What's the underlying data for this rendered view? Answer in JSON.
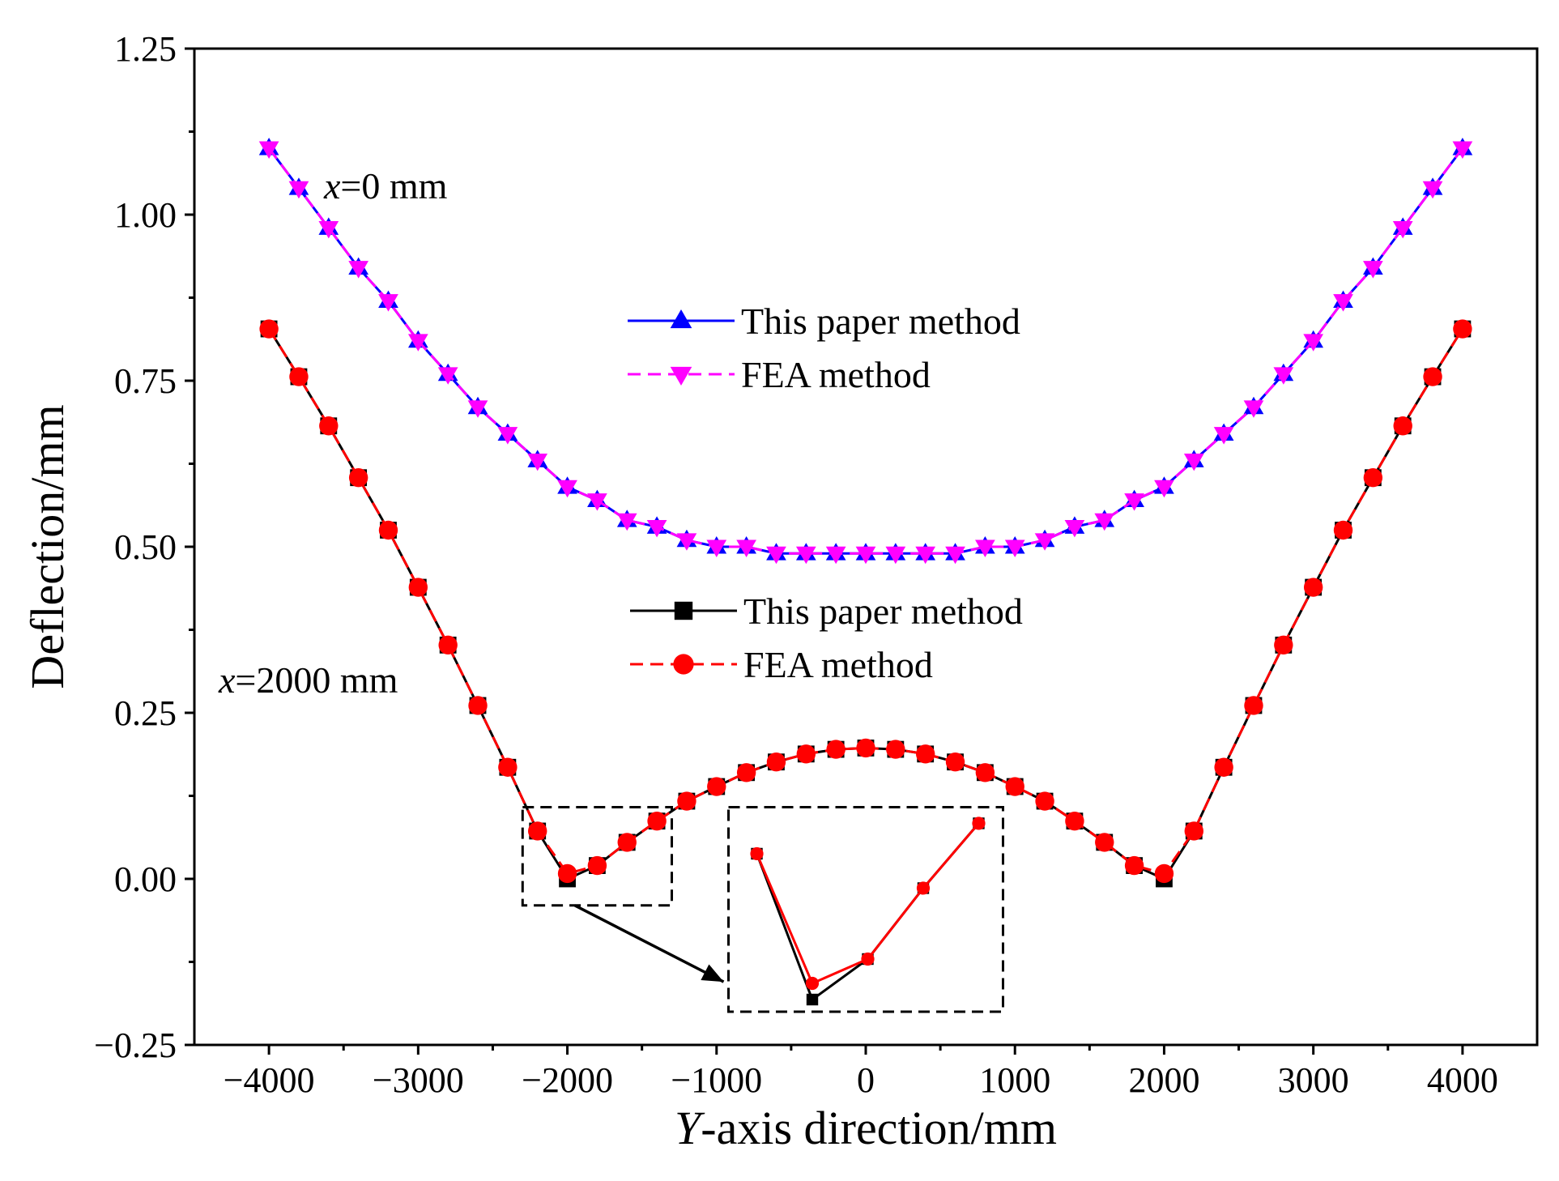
{
  "chart_data": {
    "type": "line",
    "title": "",
    "xlabel_italic": "Y",
    "xlabel_rest": "-axis direction/mm",
    "ylabel": "Deflection/mm",
    "xlim": [
      -4500,
      4500
    ],
    "ylim": [
      -0.25,
      1.25
    ],
    "x_ticks": [
      -4000,
      -3000,
      -2000,
      -1000,
      0,
      1000,
      2000,
      3000,
      4000
    ],
    "x_tick_labels": [
      "−4000",
      "−3000",
      "−2000",
      "−1000",
      "0",
      "1000",
      "2000",
      "3000",
      "4000"
    ],
    "y_ticks": [
      -0.25,
      0.0,
      0.25,
      0.5,
      0.75,
      1.0,
      1.25
    ],
    "y_tick_labels": [
      "−0.25",
      "0.00",
      "0.25",
      "0.50",
      "0.75",
      "1.00",
      "1.25"
    ],
    "x": [
      -4000,
      -3800,
      -3600,
      -3400,
      -3200,
      -3000,
      -2800,
      -2600,
      -2400,
      -2200,
      -2000,
      -1800,
      -1600,
      -1400,
      -1200,
      -1000,
      -800,
      -600,
      -400,
      -200,
      0,
      200,
      400,
      600,
      800,
      1000,
      1200,
      1400,
      1600,
      1800,
      2000,
      2200,
      2400,
      2600,
      2800,
      3000,
      3200,
      3400,
      3600,
      3800,
      4000
    ],
    "series": [
      {
        "name": "This paper method",
        "group": "x=0 mm",
        "color": "#0000ff",
        "dash": "solid",
        "marker": "triangle-up",
        "values": [
          1.1,
          1.04,
          0.98,
          0.92,
          0.87,
          0.81,
          0.76,
          0.71,
          0.67,
          0.63,
          0.59,
          0.57,
          0.54,
          0.53,
          0.51,
          0.5,
          0.5,
          0.49,
          0.49,
          0.49,
          0.49,
          0.49,
          0.49,
          0.49,
          0.5,
          0.5,
          0.51,
          0.53,
          0.54,
          0.57,
          0.59,
          0.63,
          0.67,
          0.71,
          0.76,
          0.81,
          0.87,
          0.92,
          0.98,
          1.04,
          1.1
        ]
      },
      {
        "name": "FEA method",
        "group": "x=0 mm",
        "color": "#ff00ff",
        "dash": "dashed",
        "marker": "triangle-down",
        "values": [
          1.1,
          1.04,
          0.98,
          0.92,
          0.87,
          0.81,
          0.76,
          0.71,
          0.67,
          0.63,
          0.59,
          0.57,
          0.54,
          0.53,
          0.51,
          0.5,
          0.5,
          0.49,
          0.49,
          0.49,
          0.49,
          0.49,
          0.49,
          0.49,
          0.5,
          0.5,
          0.51,
          0.53,
          0.54,
          0.57,
          0.59,
          0.63,
          0.67,
          0.71,
          0.76,
          0.81,
          0.87,
          0.92,
          0.98,
          1.04,
          1.1
        ]
      },
      {
        "name": "This paper method",
        "group": "x=2000 mm",
        "color": "#000000",
        "dash": "solid",
        "marker": "square",
        "values": [
          0.828,
          0.756,
          0.682,
          0.604,
          0.525,
          0.439,
          0.352,
          0.261,
          0.168,
          0.072,
          0.0,
          0.02,
          0.055,
          0.087,
          0.117,
          0.139,
          0.16,
          0.176,
          0.188,
          0.195,
          0.197,
          0.195,
          0.188,
          0.176,
          0.16,
          0.139,
          0.117,
          0.087,
          0.055,
          0.02,
          0.0,
          0.072,
          0.168,
          0.261,
          0.352,
          0.439,
          0.525,
          0.604,
          0.682,
          0.756,
          0.828
        ]
      },
      {
        "name": "FEA method",
        "group": "x=2000 mm",
        "color": "#ff0000",
        "dash": "dashed",
        "marker": "circle",
        "values": [
          0.828,
          0.756,
          0.682,
          0.604,
          0.525,
          0.439,
          0.352,
          0.261,
          0.168,
          0.072,
          0.008,
          0.02,
          0.055,
          0.087,
          0.117,
          0.139,
          0.16,
          0.176,
          0.188,
          0.195,
          0.197,
          0.195,
          0.188,
          0.176,
          0.16,
          0.139,
          0.117,
          0.087,
          0.055,
          0.02,
          0.008,
          0.072,
          0.168,
          0.261,
          0.352,
          0.439,
          0.525,
          0.604,
          0.682,
          0.756,
          0.828
        ]
      }
    ],
    "legend_groups": [
      {
        "position": "upper-center",
        "entries": [
          0,
          1
        ]
      },
      {
        "position": "center",
        "entries": [
          2,
          3
        ]
      }
    ],
    "annotations": [
      {
        "italic": "x",
        "rest": "=0 mm"
      },
      {
        "italic": "x",
        "rest": "=2000 mm"
      }
    ],
    "inset": {
      "description_zoom_of": "region near Y = -2000 mm",
      "source_box": {
        "x_range": [
          -2300,
          -1300
        ],
        "y_range": [
          -0.04,
          0.108
        ]
      },
      "target_box": {
        "x_range": [
          -920,
          920
        ],
        "y_range": [
          -0.2,
          0.108
        ]
      },
      "zoom_series": [
        2,
        3
      ],
      "zoom_point_indices": [
        9,
        10,
        11,
        12,
        13
      ]
    },
    "grid": false
  }
}
